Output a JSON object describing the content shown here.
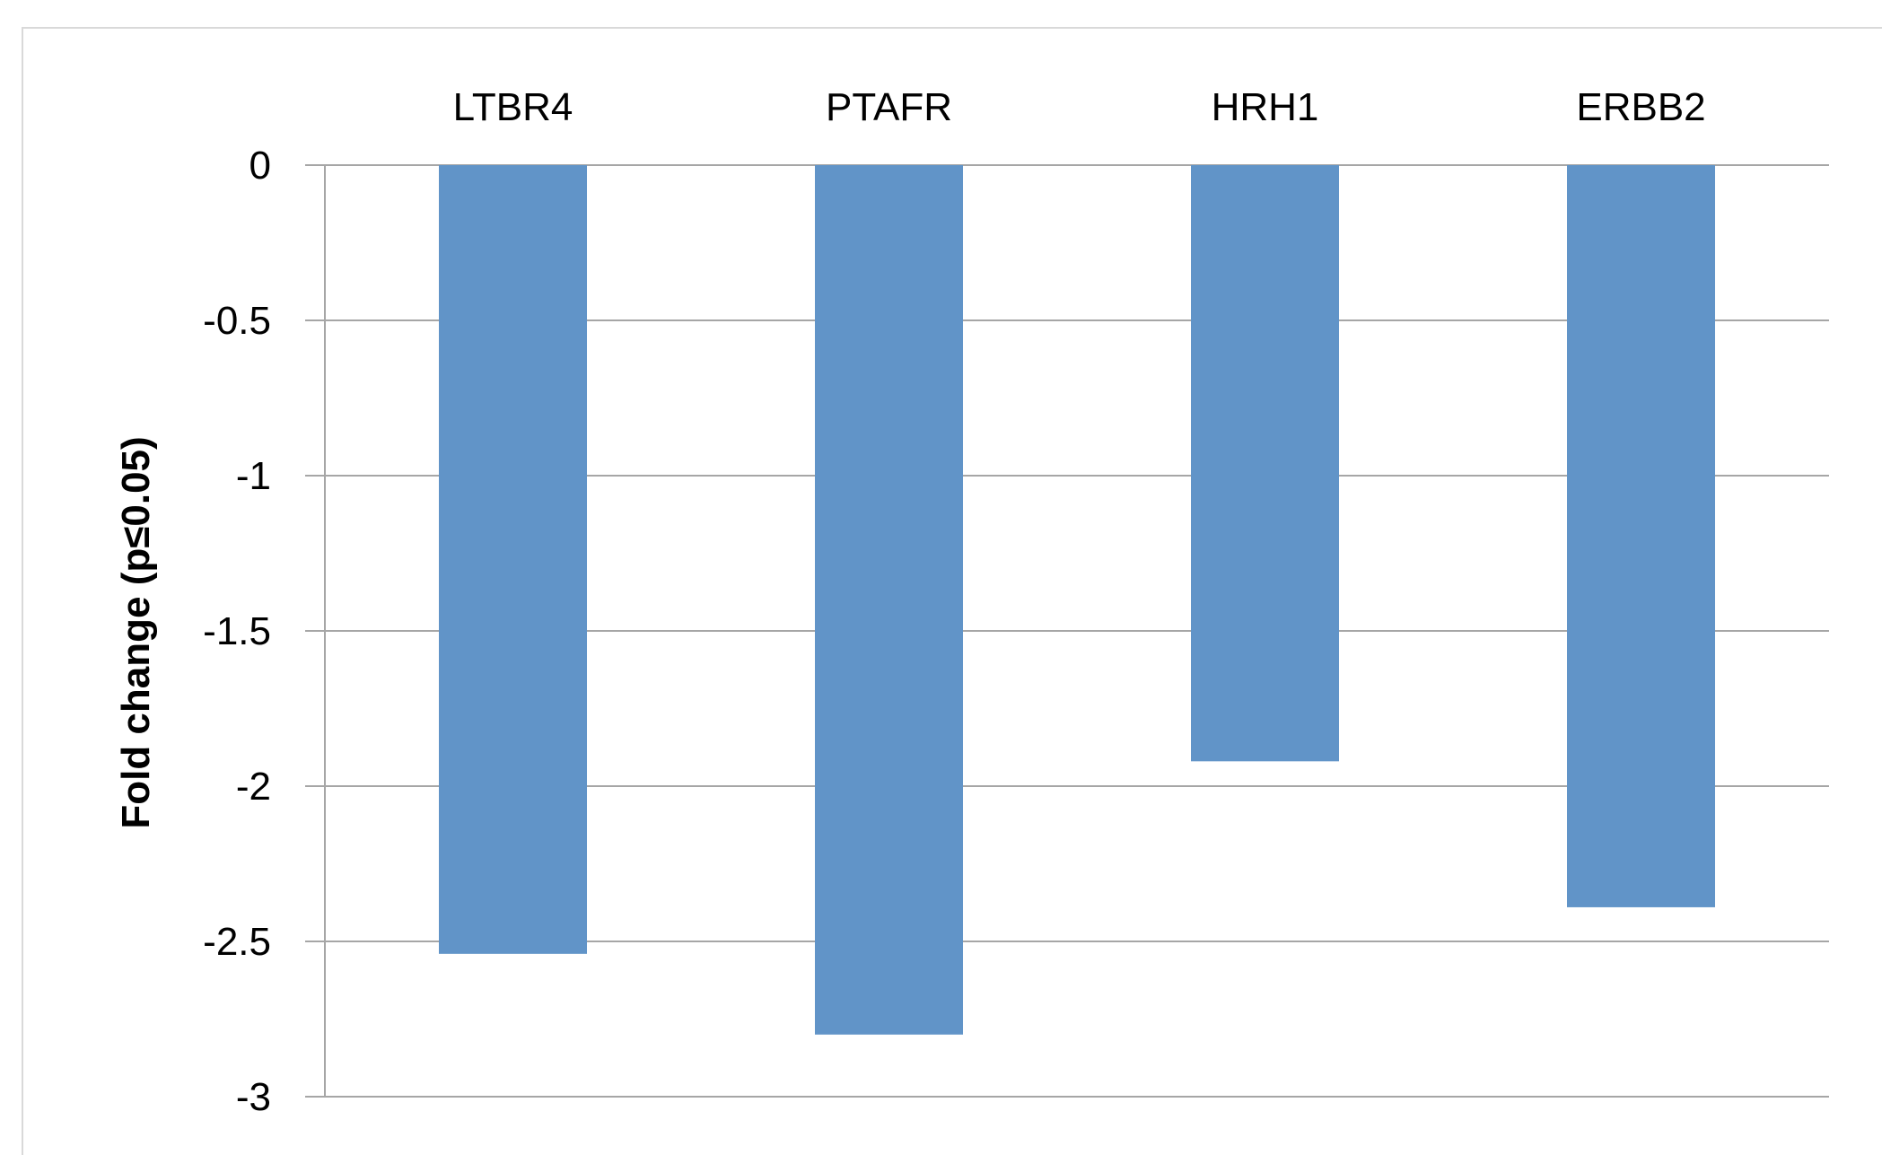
{
  "chart_data": {
    "type": "bar",
    "title": "",
    "xlabel": "",
    "ylabel": "Fold change (p≤0.05)",
    "categories": [
      "LTBR4",
      "PTAFR",
      "HRH1",
      "ERBB2"
    ],
    "values": [
      -2.54,
      -2.8,
      -1.92,
      -2.39
    ],
    "ylim": [
      -3,
      0
    ],
    "yticks": [
      0,
      -0.5,
      -1,
      -1.5,
      -2,
      -2.5,
      -3
    ],
    "ytick_labels": [
      "0",
      "-0.5",
      "-1",
      "-1.5",
      "-2",
      "-2.5",
      "-3"
    ],
    "category_axis_position": "top",
    "grid": true,
    "legend": "none",
    "colors": {
      "bar": "#6194C8",
      "grid": "#a6a6a6",
      "frame": "#d9d9d9"
    }
  }
}
